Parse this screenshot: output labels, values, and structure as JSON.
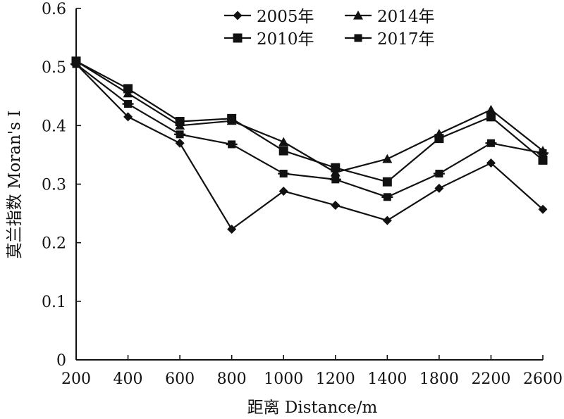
{
  "chart_data": {
    "type": "line",
    "title": "",
    "xlabel": "距离 Distance/m",
    "ylabel": "莫兰指数 Moran's I",
    "x": [
      200,
      400,
      600,
      800,
      1000,
      1200,
      1400,
      1800,
      2200,
      2600
    ],
    "x_tick_labels": [
      "200",
      "400",
      "600",
      "800",
      "1000",
      "1200",
      "1400",
      "1800",
      "2200",
      "2600"
    ],
    "ylim": [
      0,
      0.6
    ],
    "y_ticks": [
      0,
      0.1,
      0.2,
      0.3,
      0.4,
      0.5,
      0.6
    ],
    "y_tick_labels": [
      "0",
      "0.1",
      "0.2",
      "0.3",
      "0.4",
      "0.5",
      "0.6"
    ],
    "grid": false,
    "legend_position": "top",
    "series": [
      {
        "name": "2005年",
        "marker": "diamond",
        "values": [
          0.505,
          0.415,
          0.37,
          0.223,
          0.288,
          0.264,
          0.238,
          0.293,
          0.336,
          0.257
        ]
      },
      {
        "name": "2014年",
        "marker": "triangle",
        "values": [
          0.51,
          0.455,
          0.4,
          0.408,
          0.372,
          0.32,
          0.343,
          0.386,
          0.427,
          0.357
        ]
      },
      {
        "name": "2010年",
        "marker": "square",
        "values": [
          0.51,
          0.463,
          0.407,
          0.412,
          0.357,
          0.328,
          0.304,
          0.378,
          0.415,
          0.341
        ]
      },
      {
        "name": "2017年",
        "marker": "bar-square",
        "values": [
          0.505,
          0.437,
          0.385,
          0.368,
          0.318,
          0.308,
          0.278,
          0.318,
          0.37,
          0.353
        ]
      }
    ]
  }
}
